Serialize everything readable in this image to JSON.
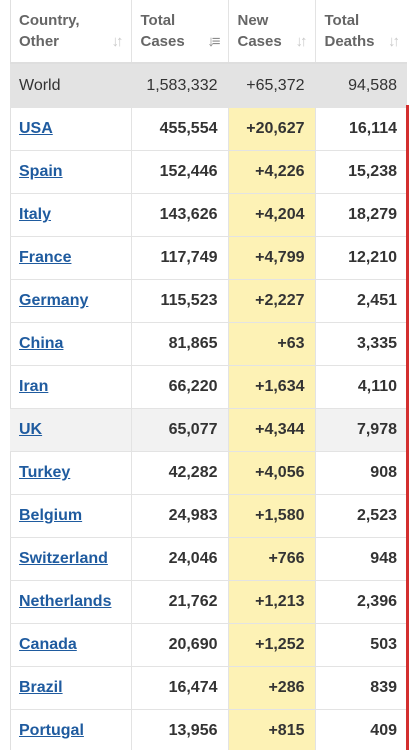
{
  "headers": {
    "country": [
      "Country,",
      "Other"
    ],
    "total_cases": [
      "Total",
      "Cases"
    ],
    "new_cases": [
      "New",
      "Cases"
    ],
    "total_deaths": [
      "Total",
      "Deaths"
    ],
    "sort_icon": "sort-arrows-icon",
    "sort_active_icon": "sort-descending-icon"
  },
  "world": {
    "country": "World",
    "total_cases": "1,583,332",
    "new_cases": "+65,372",
    "total_deaths": "94,588"
  },
  "rows": [
    {
      "country": "USA",
      "total_cases": "455,554",
      "new_cases": "+20,627",
      "total_deaths": "16,114"
    },
    {
      "country": "Spain",
      "total_cases": "152,446",
      "new_cases": "+4,226",
      "total_deaths": "15,238"
    },
    {
      "country": "Italy",
      "total_cases": "143,626",
      "new_cases": "+4,204",
      "total_deaths": "18,279"
    },
    {
      "country": "France",
      "total_cases": "117,749",
      "new_cases": "+4,799",
      "total_deaths": "12,210"
    },
    {
      "country": "Germany",
      "total_cases": "115,523",
      "new_cases": "+2,227",
      "total_deaths": "2,451"
    },
    {
      "country": "China",
      "total_cases": "81,865",
      "new_cases": "+63",
      "total_deaths": "3,335"
    },
    {
      "country": "Iran",
      "total_cases": "66,220",
      "new_cases": "+1,634",
      "total_deaths": "4,110"
    },
    {
      "country": "UK",
      "total_cases": "65,077",
      "new_cases": "+4,344",
      "total_deaths": "7,978"
    },
    {
      "country": "Turkey",
      "total_cases": "42,282",
      "new_cases": "+4,056",
      "total_deaths": "908"
    },
    {
      "country": "Belgium",
      "total_cases": "24,983",
      "new_cases": "+1,580",
      "total_deaths": "2,523"
    },
    {
      "country": "Switzerland",
      "total_cases": "24,046",
      "new_cases": "+766",
      "total_deaths": "948"
    },
    {
      "country": "Netherlands",
      "total_cases": "21,762",
      "new_cases": "+1,213",
      "total_deaths": "2,396"
    },
    {
      "country": "Canada",
      "total_cases": "20,690",
      "new_cases": "+1,252",
      "total_deaths": "503"
    },
    {
      "country": "Brazil",
      "total_cases": "16,474",
      "new_cases": "+286",
      "total_deaths": "839"
    },
    {
      "country": "Portugal",
      "total_cases": "13,956",
      "new_cases": "+815",
      "total_deaths": "409"
    }
  ],
  "colors": {
    "link": "#1f5b9f",
    "new_cases_bg": "#fdf2b5",
    "world_row_bg": "#e3e3e3",
    "right_edge_marker": "#d32f2f"
  }
}
